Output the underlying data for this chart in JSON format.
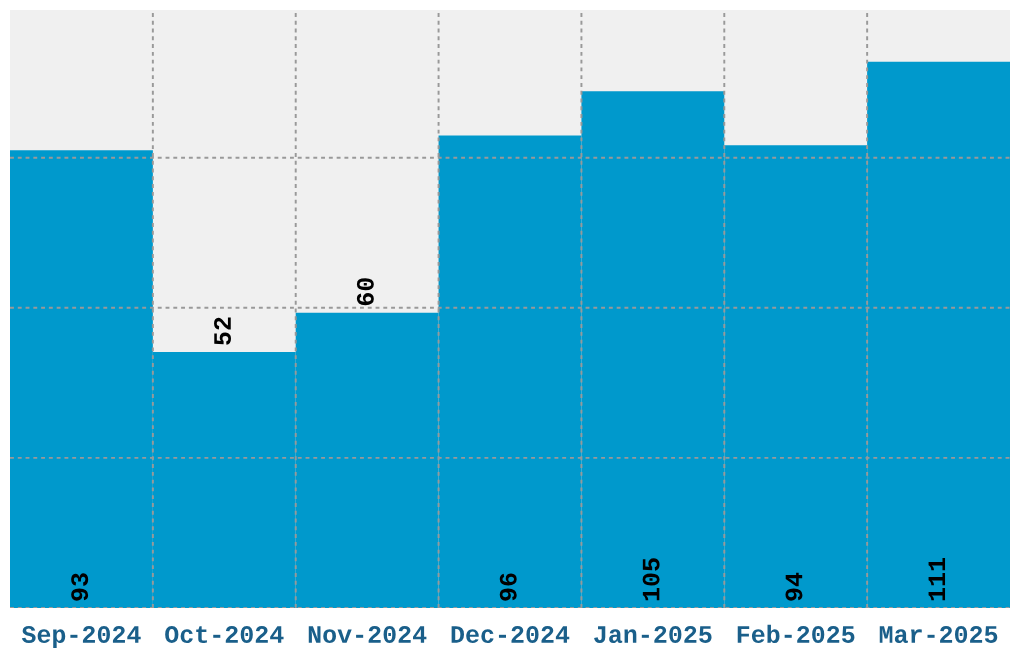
{
  "chart_data": {
    "type": "bar",
    "categories": [
      "Sep-2024",
      "Oct-2024",
      "Nov-2024",
      "Dec-2024",
      "Jan-2025",
      "Feb-2025",
      "Mar-2025"
    ],
    "values": [
      93,
      52,
      60,
      96,
      105,
      94,
      111
    ],
    "color": "#0099cc",
    "ylim": [
      0,
      121.5
    ],
    "yticks": [
      {
        "value": 0,
        "label": null
      },
      {
        "value": 30.5,
        "label": null
      },
      {
        "value": 61,
        "label": null
      },
      {
        "value": 91.5,
        "label": null
      }
    ],
    "tick_labels": "x",
    "data_labels": true,
    "grid": true
  }
}
